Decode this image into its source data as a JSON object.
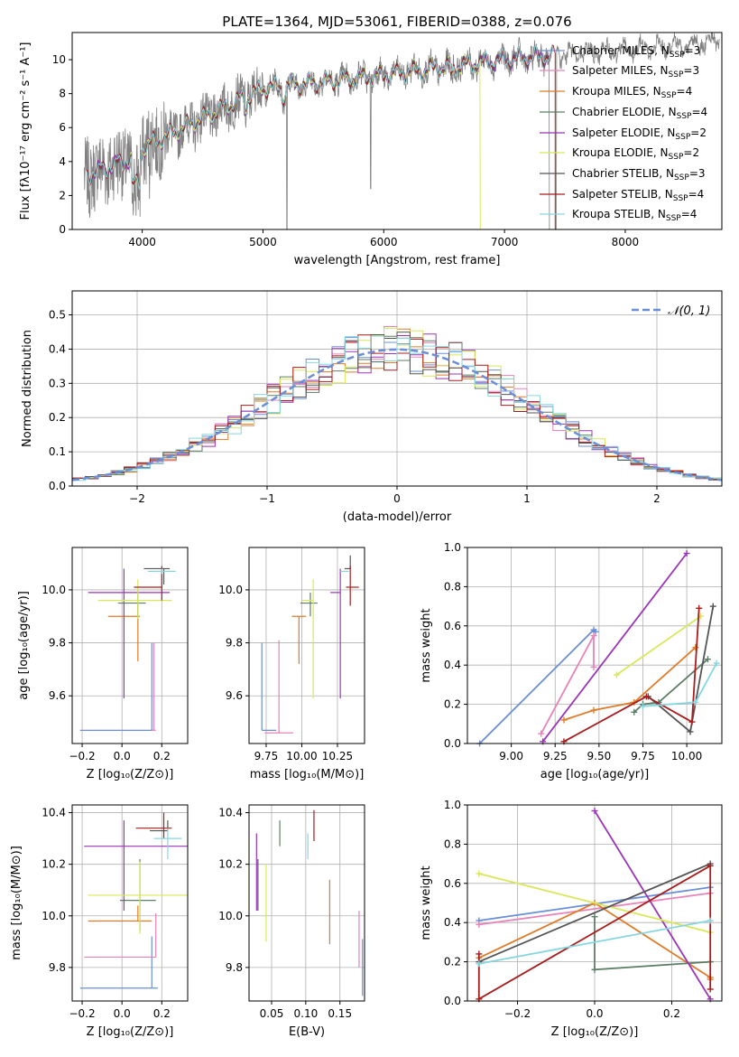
{
  "colors": [
    "#6a8fd8",
    "#e882b8",
    "#e07b28",
    "#5c7f66",
    "#9b35b8",
    "#d8e85a",
    "#555555",
    "#a81c1c",
    "#86d6df"
  ],
  "chart_data": [
    {
      "id": "spectrum",
      "type": "line",
      "title": "PLATE=1364, MJD=53061, FIBERID=0388, z=0.076",
      "xlabel": "wavelength [Angstrom, rest frame]",
      "ylabel": "Flux [fλ10⁻¹⁷ erg cm⁻² s⁻¹ A⁻¹]",
      "xlim": [
        3420,
        8800
      ],
      "ylim": [
        0,
        11.6
      ],
      "xticks": [
        "4000",
        "5000",
        "6000",
        "7000",
        "8000"
      ],
      "yticks": [
        "0",
        "2",
        "4",
        "6",
        "8",
        "10"
      ],
      "legend_position": "right",
      "legend": [
        {
          "name": "Chabrier MILES, N",
          "sub": "SSP",
          "suffix": "=3"
        },
        {
          "name": "Salpeter MILES, N",
          "sub": "SSP",
          "suffix": "=3"
        },
        {
          "name": "Kroupa MILES, N",
          "sub": "SSP",
          "suffix": "=4"
        },
        {
          "name": "Chabrier ELODIE, N",
          "sub": "SSP",
          "suffix": "=4"
        },
        {
          "name": "Salpeter ELODIE, N",
          "sub": "SSP",
          "suffix": "=2"
        },
        {
          "name": "Kroupa ELODIE, N",
          "sub": "SSP",
          "suffix": "=2"
        },
        {
          "name": "Chabrier STELIB, N",
          "sub": "SSP",
          "suffix": "=3"
        },
        {
          "name": "Salpeter STELIB, N",
          "sub": "SSP",
          "suffix": "=4"
        },
        {
          "name": "Kroupa STELIB, N",
          "sub": "SSP",
          "suffix": "=4"
        }
      ],
      "model_ranges": [
        [
          3540,
          7400
        ],
        [
          3540,
          7400
        ],
        [
          3540,
          7400
        ],
        [
          3540,
          7400
        ],
        [
          3540,
          7400
        ],
        [
          3900,
          6800
        ],
        [
          3540,
          7400
        ],
        [
          3540,
          7420
        ],
        [
          3540,
          7400
        ]
      ]
    },
    {
      "id": "residuals",
      "type": "bar",
      "xlabel": "(data-model)/error",
      "ylabel": "Normed distribution",
      "xlim": [
        -2.5,
        2.5
      ],
      "ylim": [
        0,
        0.57
      ],
      "xticks": [
        "−2",
        "−1",
        "0",
        "1",
        "2"
      ],
      "yticks": [
        "0.0",
        "0.1",
        "0.2",
        "0.3",
        "0.4",
        "0.5"
      ],
      "grid": true,
      "legend_position": "top-right",
      "reference_curve": "𝒩(0, 1)",
      "bin_width": 0.1
    },
    {
      "id": "age_vs_Z",
      "type": "scatter",
      "xlabel": "Z [log₁₀(Z/Z⊙)]",
      "ylabel": "age  [log₁₀(age/yr)]",
      "xlim": [
        -0.25,
        0.33
      ],
      "ylim": [
        9.42,
        10.16
      ],
      "xticks": [
        "−0.2",
        "0.0",
        "0.2"
      ],
      "yticks": [
        "9.6",
        "9.8",
        "10.0"
      ],
      "grid": true,
      "points": [
        {
          "x": 0.15,
          "xerr": [
            0.36,
            0.01
          ],
          "y": 9.47,
          "yerr": [
            0.0,
            0.33
          ]
        },
        {
          "x": 0.16,
          "xerr": [
            0.01,
            0.01
          ],
          "y": 9.47,
          "yerr": [
            0.0,
            0.33
          ]
        },
        {
          "x": 0.08,
          "xerr": [
            0.15,
            0.01
          ],
          "y": 9.9,
          "yerr": [
            0.17,
            0.05
          ]
        },
        {
          "x": 0.08,
          "xerr": [
            0.1,
            0.04
          ],
          "y": 9.95,
          "yerr": [
            0.05,
            0.05
          ]
        },
        {
          "x": 0.01,
          "xerr": [
            0.18,
            0.23
          ],
          "y": 9.99,
          "yerr": [
            0.4,
            0.09
          ]
        },
        {
          "x": 0.08,
          "xerr": [
            0.2,
            0.17
          ],
          "y": 9.96,
          "yerr": [
            0.07,
            0.08
          ]
        },
        {
          "x": 0.21,
          "xerr": [
            0.1,
            0.03
          ],
          "y": 10.08,
          "yerr": [
            0.06,
            0.0
          ]
        },
        {
          "x": 0.2,
          "xerr": [
            0.14,
            0.0
          ],
          "y": 10.01,
          "yerr": [
            0.05,
            0.08
          ]
        },
        {
          "x": 0.2,
          "xerr": [
            0.07,
            0.07
          ],
          "y": 10.07,
          "yerr": [
            0.01,
            0.01
          ]
        }
      ]
    },
    {
      "id": "age_vs_mass",
      "type": "scatter",
      "xlabel": "mass [log₁₀(M/M⊙)]",
      "xlim": [
        9.63,
        10.44
      ],
      "ylim": [
        9.42,
        10.16
      ],
      "xticks": [
        "9.75",
        "10.00",
        "10.25"
      ],
      "yticks": [
        "9.6",
        "9.8",
        "10.0"
      ],
      "grid": true,
      "points": [
        {
          "x": 9.72,
          "xerr": [
            0.0,
            0.1
          ],
          "y": 9.47,
          "yerr": [
            0.0,
            0.33
          ]
        },
        {
          "x": 9.84,
          "xerr": [
            0.1,
            0.1
          ],
          "y": 9.46,
          "yerr": [
            0.0,
            0.35
          ]
        },
        {
          "x": 9.98,
          "xerr": [
            0.05,
            0.05
          ],
          "y": 9.9,
          "yerr": [
            0.18,
            0.0
          ]
        },
        {
          "x": 10.06,
          "xerr": [
            0.07,
            0.05
          ],
          "y": 9.95,
          "yerr": [
            0.05,
            0.04
          ]
        },
        {
          "x": 10.27,
          "xerr": [
            0.07,
            0.0
          ],
          "y": 9.99,
          "yerr": [
            0.4,
            0.09
          ]
        },
        {
          "x": 10.08,
          "xerr": [
            0.08,
            0.0
          ],
          "y": 9.96,
          "yerr": [
            0.37,
            0.08
          ]
        },
        {
          "x": 10.34,
          "xerr": [
            0.04,
            0.0
          ],
          "y": 10.08,
          "yerr": [
            0.0,
            0.05
          ]
        },
        {
          "x": 10.34,
          "xerr": [
            0.03,
            0.06
          ],
          "y": 10.01,
          "yerr": [
            0.07,
            0.08
          ]
        },
        {
          "x": 10.3,
          "xerr": [
            0.03,
            0.03
          ],
          "y": 10.07,
          "yerr": [
            0.0,
            0.0
          ]
        }
      ]
    },
    {
      "id": "weight_vs_age",
      "type": "line",
      "xlabel": "age  [log₁₀(age/yr)]",
      "ylabel": "mass weight",
      "xlim": [
        8.75,
        10.2
      ],
      "ylim": [
        0,
        1
      ],
      "xticks": [
        "9.00",
        "9.25",
        "9.50",
        "9.75",
        "10.00"
      ],
      "yticks": [
        "0.0",
        "0.2",
        "0.4",
        "0.6",
        "0.8",
        "1.0"
      ],
      "grid": true,
      "series": [
        {
          "x": [
            8.82,
            9.47,
            9.48
          ],
          "y": [
            0.0,
            0.58,
            0.57
          ]
        },
        {
          "x": [
            9.17,
            9.47,
            9.47
          ],
          "y": [
            0.05,
            0.55,
            0.39
          ]
        },
        {
          "x": [
            9.3,
            9.47,
            9.7,
            10.05
          ],
          "y": [
            0.12,
            0.17,
            0.21,
            0.49
          ]
        },
        {
          "x": [
            9.7,
            9.75,
            9.84,
            10.12
          ],
          "y": [
            0.16,
            0.2,
            0.21,
            0.43
          ]
        },
        {
          "x": [
            9.18,
            10.0
          ],
          "y": [
            0.01,
            0.97
          ]
        },
        {
          "x": [
            9.6,
            10.08
          ],
          "y": [
            0.35,
            0.65
          ]
        },
        {
          "x": [
            9.78,
            10.02,
            10.15
          ],
          "y": [
            0.24,
            0.06,
            0.7
          ]
        },
        {
          "x": [
            9.3,
            9.77,
            10.03,
            10.07
          ],
          "y": [
            0.01,
            0.24,
            0.11,
            0.69
          ]
        },
        {
          "x": [
            9.75,
            10.05,
            10.17
          ],
          "y": [
            0.19,
            0.21,
            0.41
          ]
        }
      ]
    },
    {
      "id": "mass_vs_Z",
      "type": "scatter",
      "xlabel": "Z [log₁₀(Z/Z⊙)]",
      "ylabel": "mass [log₁₀(M/M⊙)]",
      "xlim": [
        -0.25,
        0.33
      ],
      "ylim": [
        9.67,
        10.43
      ],
      "xticks": [
        "−0.2",
        "0.0",
        "0.2"
      ],
      "yticks": [
        "9.8",
        "10.0",
        "10.2",
        "10.4"
      ],
      "grid": true,
      "points": [
        {
          "x": 0.15,
          "xerr": [
            0.36,
            0.03
          ],
          "y": 9.72,
          "yerr": [
            0.0,
            0.2
          ]
        },
        {
          "x": 0.17,
          "xerr": [
            0.36,
            0.0
          ],
          "y": 9.84,
          "yerr": [
            0.0,
            0.17
          ]
        },
        {
          "x": 0.08,
          "xerr": [
            0.25,
            0.07
          ],
          "y": 9.98,
          "yerr": [
            0.0,
            0.06
          ]
        },
        {
          "x": 0.09,
          "xerr": [
            0.1,
            0.08
          ],
          "y": 10.06,
          "yerr": [
            0.12,
            0.16
          ]
        },
        {
          "x": 0.01,
          "xerr": [
            0.2,
            0.32
          ],
          "y": 10.27,
          "yerr": [
            0.25,
            0.1
          ]
        },
        {
          "x": 0.09,
          "xerr": [
            0.26,
            0.24
          ],
          "y": 10.08,
          "yerr": [
            0.15,
            0.13
          ]
        },
        {
          "x": 0.23,
          "xerr": [
            0.09,
            0.0
          ],
          "y": 10.33,
          "yerr": [
            0.0,
            0.04
          ]
        },
        {
          "x": 0.21,
          "xerr": [
            0.14,
            0.04
          ],
          "y": 10.34,
          "yerr": [
            0.04,
            0.06
          ]
        },
        {
          "x": 0.23,
          "xerr": [
            0.07,
            0.07
          ],
          "y": 10.3,
          "yerr": [
            0.08,
            0.04
          ]
        }
      ]
    },
    {
      "id": "mass_vs_ebv",
      "type": "scatter",
      "xlabel": "E(B-V)",
      "xlim": [
        0.017,
        0.186
      ],
      "ylim": [
        9.67,
        10.43
      ],
      "xticks": [
        "0.05",
        "0.10",
        "0.15"
      ],
      "yticks": [
        "9.8",
        "10.0",
        "10.2",
        "10.4"
      ],
      "grid": true,
      "points": [
        {
          "x": 0.183,
          "y": 9.8,
          "yerr": [
            0.11,
            0.11
          ]
        },
        {
          "x": 0.178,
          "y": 9.91,
          "yerr": [
            0.11,
            0.11
          ]
        },
        {
          "x": 0.135,
          "y": 10.02,
          "yerr": [
            0.13,
            0.12
          ]
        },
        {
          "x": 0.062,
          "y": 10.32,
          "yerr": [
            0.05,
            0.05
          ]
        },
        {
          "x": 0.028,
          "y": 10.17,
          "yerr": [
            0.15,
            0.15
          ]
        },
        {
          "x": 0.042,
          "y": 10.05,
          "yerr": [
            0.15,
            0.15
          ]
        },
        {
          "x": 0.03,
          "y": 10.12,
          "yerr": [
            0.1,
            0.1
          ]
        },
        {
          "x": 0.112,
          "y": 10.35,
          "yerr": [
            0.06,
            0.06
          ]
        },
        {
          "x": 0.103,
          "y": 10.27,
          "yerr": [
            0.05,
            0.05
          ]
        }
      ]
    },
    {
      "id": "weight_vs_Z",
      "type": "line",
      "xlabel": "Z [log₁₀(Z/Z⊙)]",
      "ylabel": "mass weight",
      "xlim": [
        -0.33,
        0.33
      ],
      "ylim": [
        0,
        1
      ],
      "xticks": [
        "−0.2",
        "0.0",
        "0.2"
      ],
      "yticks": [
        "0.0",
        "0.2",
        "0.4",
        "0.6",
        "0.8",
        "1.0"
      ],
      "grid": true,
      "series": [
        {
          "x": [
            -0.3,
            0.3
          ],
          "y": [
            0.41,
            0.58
          ]
        },
        {
          "x": [
            -0.3,
            0.3
          ],
          "y": [
            0.39,
            0.55
          ]
        },
        {
          "x": [
            -0.3,
            0.0,
            0.3,
            0.3
          ],
          "y": [
            0.22,
            0.5,
            0.12,
            0.11
          ]
        },
        {
          "x": [
            0.0,
            0.0,
            0.3,
            0.3
          ],
          "y": [
            0.43,
            0.16,
            0.2,
            0.2
          ]
        },
        {
          "x": [
            0.0,
            0.3
          ],
          "y": [
            0.97,
            0.01
          ]
        },
        {
          "x": [
            -0.3,
            0.3
          ],
          "y": [
            0.65,
            0.35
          ]
        },
        {
          "x": [
            -0.3,
            0.3
          ],
          "y": [
            0.2,
            0.7
          ]
        },
        {
          "x": [
            -0.3,
            -0.3,
            0.3,
            0.3
          ],
          "y": [
            0.24,
            0.01,
            0.69,
            0.06
          ]
        },
        {
          "x": [
            -0.3,
            0.3
          ],
          "y": [
            0.19,
            0.41
          ]
        }
      ]
    }
  ]
}
